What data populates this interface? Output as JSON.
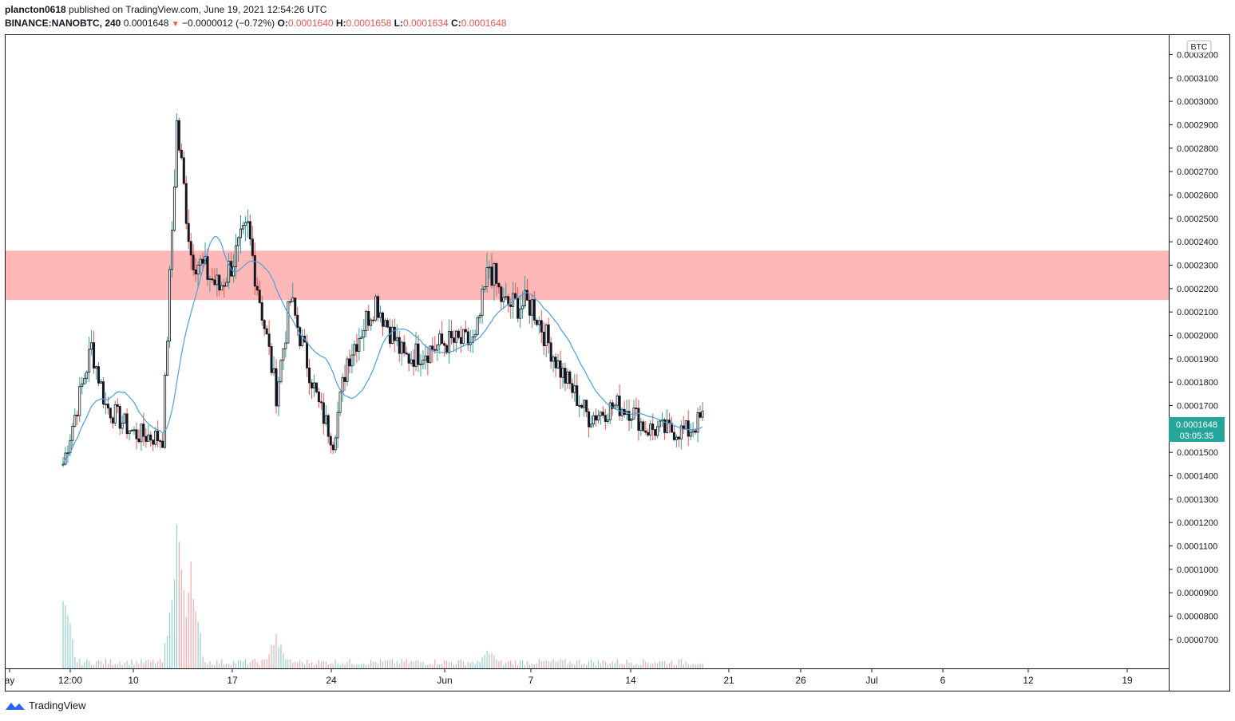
{
  "header": {
    "user": "plancton0618",
    "published": "published on TradingView.com, June 19, 2021 12:54:26 UTC",
    "symbol": "BINANCE:NANOBTC, 240",
    "last": "0.0001648",
    "change": "−0.0000012 (−0.72%)",
    "open_label": "O:",
    "open": "0.0001640",
    "high_label": "H:",
    "high": "0.0001658",
    "low_label": "L:",
    "low": "0.0001634",
    "close_label": "C:",
    "close": "0.0001648"
  },
  "price_axis": {
    "currency": "BTC",
    "ticks": [
      "0.0003200",
      "0.0003100",
      "0.0003000",
      "0.0002900",
      "0.0002800",
      "0.0002700",
      "0.0002600",
      "0.0002500",
      "0.0002400",
      "0.0002300",
      "0.0002200",
      "0.0002100",
      "0.0002000",
      "0.0001900",
      "0.0001800",
      "0.0001700",
      "0.0001500",
      "0.0001400",
      "0.0001300",
      "0.0001200",
      "0.0001100",
      "0.0001000",
      "0.0000900",
      "0.0000800",
      "0.0000700"
    ],
    "last_price": "0.0001648",
    "countdown": "03:05:35"
  },
  "time_axis": {
    "labels": [
      "ay",
      "12:00",
      "10",
      "17",
      "24",
      "Jun",
      "7",
      "14",
      "21",
      "26",
      "Jul",
      "6",
      "12",
      "19"
    ]
  },
  "footer": {
    "brand": "TradingView"
  },
  "colors": {
    "up": "#26a69a",
    "down": "#ef5350",
    "zone": "#ffb8b8",
    "ma": "#4a9fe0",
    "last_badge": "#26a69a"
  },
  "chart_data": {
    "type": "candlestick",
    "interval": "240",
    "y_range": [
      6.5e-05,
      0.000321
    ],
    "resistance_zone": [
      0.0002151,
      0.0002362
    ],
    "moving_average": true,
    "anchors": [
      {
        "date": "2021-05-05",
        "close": 0.000145
      },
      {
        "date": "2021-05-07",
        "close": 0.000195
      },
      {
        "date": "2021-05-08",
        "close": 0.00017
      },
      {
        "date": "2021-05-10",
        "close": 0.000158
      },
      {
        "date": "2021-05-12",
        "close": 0.000156
      },
      {
        "date": "2021-05-13",
        "close": 0.00029
      },
      {
        "date": "2021-05-14",
        "close": 0.000235
      },
      {
        "date": "2021-05-16",
        "close": 0.00022
      },
      {
        "date": "2021-05-18",
        "close": 0.000245
      },
      {
        "date": "2021-05-20",
        "close": 0.000175
      },
      {
        "date": "2021-05-21",
        "close": 0.000215
      },
      {
        "date": "2021-05-23",
        "close": 0.00017
      },
      {
        "date": "2021-05-24",
        "close": 0.000155
      },
      {
        "date": "2021-05-25",
        "close": 0.00019
      },
      {
        "date": "2021-05-27",
        "close": 0.000215
      },
      {
        "date": "2021-05-29",
        "close": 0.00019
      },
      {
        "date": "2021-06-01",
        "close": 0.000197
      },
      {
        "date": "2021-06-03",
        "close": 0.000197
      },
      {
        "date": "2021-06-04",
        "close": 0.00023
      },
      {
        "date": "2021-06-05",
        "close": 0.000213
      },
      {
        "date": "2021-06-07",
        "close": 0.000213
      },
      {
        "date": "2021-06-09",
        "close": 0.000185
      },
      {
        "date": "2021-06-11",
        "close": 0.000165
      },
      {
        "date": "2021-06-13",
        "close": 0.00017
      },
      {
        "date": "2021-06-14",
        "close": 0.000168
      },
      {
        "date": "2021-06-15",
        "close": 0.00016
      },
      {
        "date": "2021-06-18",
        "close": 0.000159
      },
      {
        "date": "2021-06-19",
        "close": 0.0001648
      }
    ],
    "volume_spikes": [
      {
        "date": "2021-05-05",
        "level": 0.6
      },
      {
        "date": "2021-05-13",
        "level": 1.0
      },
      {
        "date": "2021-05-14",
        "level": 0.7
      },
      {
        "date": "2021-05-20",
        "level": 0.25
      },
      {
        "date": "2021-06-04",
        "level": 0.15
      }
    ]
  }
}
